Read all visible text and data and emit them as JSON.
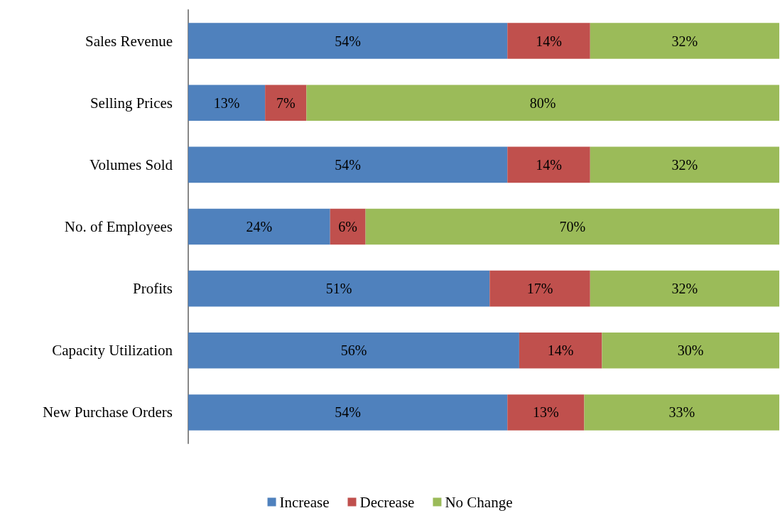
{
  "chart_data": {
    "type": "bar",
    "orientation": "horizontal",
    "stacked": true,
    "legend": "bottom",
    "categories": [
      "Sales Revenue",
      "Selling Prices",
      "Volumes Sold",
      "No. of Employees",
      "Profits",
      "Capacity Utilization",
      "New Purchase Orders"
    ],
    "series": [
      {
        "name": "Increase",
        "color": "#4f81bd",
        "values": [
          54,
          13,
          54,
          24,
          51,
          56,
          54
        ],
        "value_labels": [
          "54%",
          "13%",
          "54%",
          "24%",
          "51%",
          "56%",
          "54%"
        ]
      },
      {
        "name": "Decrease",
        "color": "#c0504d",
        "values": [
          14,
          7,
          14,
          6,
          17,
          14,
          13
        ],
        "value_labels": [
          "14%",
          "7%",
          "14%",
          "6%",
          "17%",
          "14%",
          "13%"
        ]
      },
      {
        "name": "No Change",
        "color": "#9bbb59",
        "values": [
          32,
          80,
          32,
          70,
          32,
          30,
          33
        ],
        "value_labels": [
          "32%",
          "80%",
          "32%",
          "70%",
          "32%",
          "30%",
          "33%"
        ]
      }
    ]
  }
}
